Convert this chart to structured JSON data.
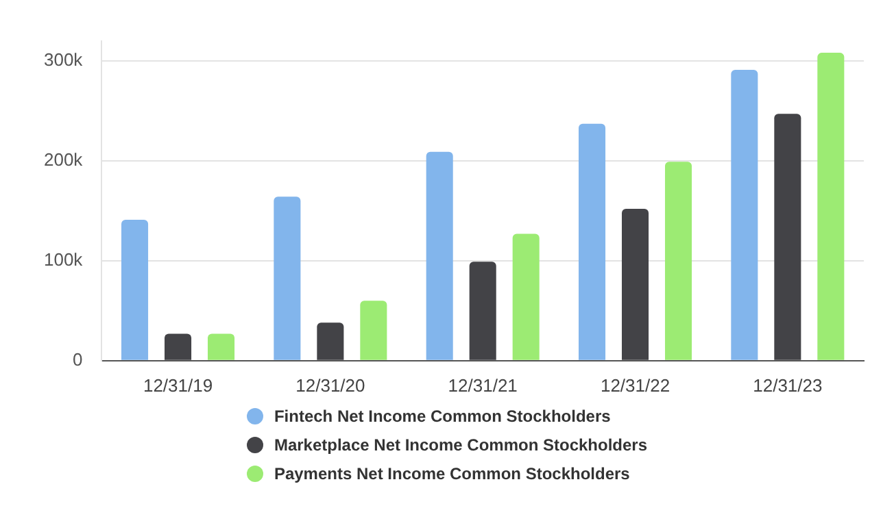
{
  "chart_data": {
    "type": "bar",
    "categories": [
      "12/31/19",
      "12/31/20",
      "12/31/21",
      "12/31/22",
      "12/31/23"
    ],
    "series": [
      {
        "name": "Fintech Net Income Common Stockholders",
        "color": "#82b5ec",
        "values": [
          141,
          164,
          209,
          237,
          291
        ]
      },
      {
        "name": "Marketplace Net Income Common Stockholders",
        "color": "#434347",
        "values": [
          27,
          38,
          99,
          152,
          247
        ]
      },
      {
        "name": "Payments Net Income Common Stockholders",
        "color": "#9ceb73",
        "values": [
          27,
          60,
          127,
          199,
          308
        ]
      }
    ],
    "ylim": [
      0,
      320
    ],
    "yticks": [
      0,
      {
        "value": 100,
        "label": "100k"
      },
      {
        "value": 200,
        "label": "200k"
      },
      {
        "value": 300,
        "label": "300k"
      }
    ],
    "grid": "y",
    "legend": "bottom"
  }
}
